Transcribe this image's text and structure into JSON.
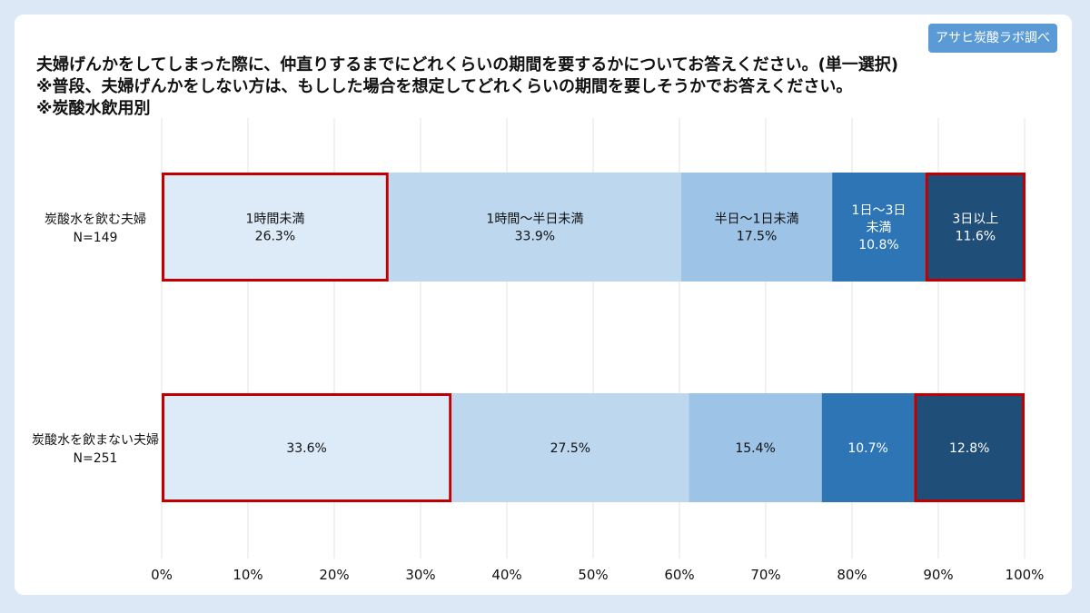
{
  "badge": "アサヒ炭酸ラボ調べ",
  "title_lines": [
    "夫婦げんかをしてしまった際に、仲直りするまでにどれくらいの期間を要するかについてお答えください。(単一選択)",
    "※普段、夫婦げんかをしない方は、もしした場合を想定してどれくらいの期間を要しそうかでお答えください。",
    "※炭酸水飲用別"
  ],
  "chart_data": {
    "type": "bar",
    "orientation": "horizontal",
    "stacked": true,
    "categories": [
      {
        "line1": "炭酸水を飲む夫婦",
        "line2": "N=149"
      },
      {
        "line1": "炭酸水を飲まない夫婦",
        "line2": "N=251"
      }
    ],
    "series": [
      {
        "labels": [
          [
            "1時間未満"
          ],
          []
        ],
        "values": [
          26.3,
          33.6
        ],
        "color": "#ddeaf7",
        "highlighted": [
          true,
          true
        ]
      },
      {
        "labels": [
          [
            "1時間～半日未満"
          ],
          []
        ],
        "values": [
          33.9,
          27.5
        ],
        "color": "#bdd7ee",
        "highlighted": [
          false,
          false
        ]
      },
      {
        "labels": [
          [
            "半日～1日未満"
          ],
          []
        ],
        "values": [
          17.5,
          15.4
        ],
        "color": "#9dc3e6",
        "highlighted": [
          false,
          false
        ]
      },
      {
        "labels": [
          [
            "1日～3日",
            "未満"
          ],
          []
        ],
        "values": [
          10.8,
          10.7
        ],
        "color": "#2e75b6",
        "highlighted": [
          false,
          false
        ]
      },
      {
        "labels": [
          [
            "3日以上"
          ],
          []
        ],
        "values": [
          11.6,
          12.8
        ],
        "color": "#1f4e79",
        "highlighted": [
          true,
          true
        ]
      }
    ],
    "value_suffix": "%",
    "x_ticks": [
      "0%",
      "10%",
      "20%",
      "30%",
      "40%",
      "50%",
      "60%",
      "70%",
      "80%",
      "90%",
      "100%"
    ],
    "xlim": [
      0,
      100
    ],
    "grid": true,
    "highlight_color": "#c00000"
  }
}
